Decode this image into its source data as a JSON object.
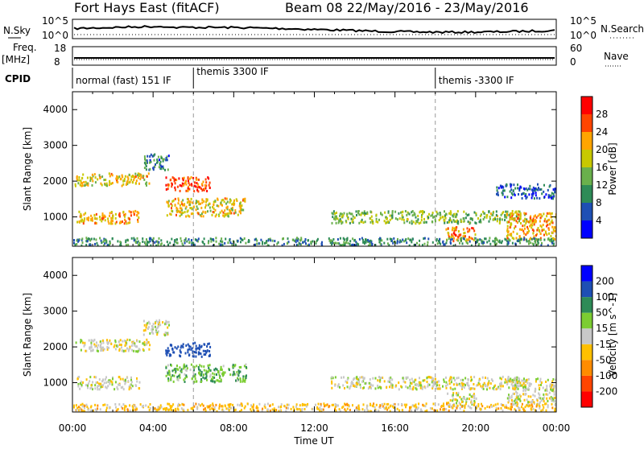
{
  "header": {
    "station": "Fort Hays East (fitACF)",
    "beam_date": "Beam 08 22/May/2016 - 23/May/2016"
  },
  "noise_panel": {
    "left_label": "N.Sky",
    "right_label": "N.Search",
    "left_ticks": [
      "10^5",
      "10^0"
    ],
    "right_ticks": [
      "10^5",
      "10^0"
    ]
  },
  "freq_panel": {
    "left_label_line1": "Freq.",
    "left_label_line2": "[MHz]",
    "right_label": "Nave",
    "left_ticks": [
      "18",
      "8"
    ],
    "right_ticks": [
      "60",
      "0"
    ]
  },
  "cpid": {
    "label": "CPID",
    "segments": [
      {
        "label": "normal (fast) 151 IF",
        "start": 0
      },
      {
        "label": "themis 3300 IF",
        "start": 6
      },
      {
        "label": "themis -3300 IF",
        "start": 18
      }
    ]
  },
  "colors": {
    "power_scale": [
      "#0000ff",
      "#1e4fb4",
      "#2e8b57",
      "#6ab04c",
      "#c8c800",
      "#ffa500",
      "#ff4500",
      "#ff0000"
    ],
    "velocity_scale": [
      "#ff0000",
      "#ff4500",
      "#ff8c00",
      "#ffc000",
      "#c8c8c8",
      "#7ccd32",
      "#2e8b57",
      "#1e4fb4",
      "#0000ff"
    ]
  },
  "chart_data": [
    {
      "type": "heatmap",
      "title": "Power",
      "ylabel": "Slant Range [km]",
      "xlabel": "Time UT",
      "xticks": [
        "00:00",
        "04:00",
        "08:00",
        "12:00",
        "16:00",
        "20:00",
        "00:00"
      ],
      "yticks": [
        "1000",
        "2000",
        "3000",
        "4000"
      ],
      "xlim": [
        0,
        24
      ],
      "ylim": [
        180,
        4500
      ],
      "colorbar": {
        "label": "Power [dB]",
        "ticks": [
          "4",
          "8",
          "12",
          "16",
          "20",
          "24",
          "28"
        ],
        "range": [
          0,
          30
        ]
      },
      "features": [
        {
          "t0": 0.1,
          "t1": 3.8,
          "r0": 1850,
          "r1": 2200,
          "power": 18
        },
        {
          "t0": 0.2,
          "t1": 3.3,
          "r0": 800,
          "r1": 1150,
          "power": 20
        },
        {
          "t0": 3.5,
          "t1": 4.8,
          "r0": 2300,
          "r1": 2750,
          "power": 8
        },
        {
          "t0": 4.6,
          "t1": 6.8,
          "r0": 1700,
          "r1": 2100,
          "power": 24
        },
        {
          "t0": 4.6,
          "t1": 8.6,
          "r0": 1000,
          "r1": 1500,
          "power": 18
        },
        {
          "t0": 12.8,
          "t1": 22.5,
          "r0": 800,
          "r1": 1150,
          "power": 14
        },
        {
          "t0": 18.5,
          "t1": 20.0,
          "r0": 300,
          "r1": 700,
          "power": 22
        },
        {
          "t0": 21.5,
          "t1": 24.0,
          "r0": 350,
          "r1": 1100,
          "power": 20
        },
        {
          "t0": 21.0,
          "t1": 24.0,
          "r0": 1500,
          "r1": 1900,
          "power": 6
        },
        {
          "t0": 0.0,
          "t1": 24.0,
          "r0": 180,
          "r1": 400,
          "power": 10
        }
      ]
    },
    {
      "type": "heatmap",
      "title": "Velocity",
      "ylabel": "Slant Range [km]",
      "xlabel": "Time UT",
      "xticks": [
        "00:00",
        "04:00",
        "08:00",
        "12:00",
        "16:00",
        "20:00",
        "00:00"
      ],
      "yticks": [
        "1000",
        "2000",
        "3000",
        "4000"
      ],
      "xlim": [
        0,
        24
      ],
      "ylim": [
        180,
        4500
      ],
      "colorbar": {
        "label": "Velocity [m s^-1]",
        "ticks": [
          "-200",
          "-100",
          "-50",
          "-15",
          "15",
          "50",
          "100",
          "200"
        ],
        "range": [
          -250,
          250
        ]
      },
      "features": [
        {
          "t0": 0.1,
          "t1": 3.8,
          "r0": 1850,
          "r1": 2200,
          "velocity": 0
        },
        {
          "t0": 0.2,
          "t1": 3.3,
          "r0": 800,
          "r1": 1150,
          "velocity": 0
        },
        {
          "t0": 3.5,
          "t1": 4.8,
          "r0": 2300,
          "r1": 2750,
          "velocity": 0
        },
        {
          "t0": 4.6,
          "t1": 6.8,
          "r0": 1700,
          "r1": 2100,
          "velocity": 150
        },
        {
          "t0": 4.6,
          "t1": 8.6,
          "r0": 1000,
          "r1": 1500,
          "velocity": 40
        },
        {
          "t0": 12.8,
          "t1": 22.5,
          "r0": 800,
          "r1": 1150,
          "velocity": 0
        },
        {
          "t0": 18.5,
          "t1": 20.0,
          "r0": 300,
          "r1": 700,
          "velocity": 0
        },
        {
          "t0": 21.5,
          "t1": 24.0,
          "r0": 350,
          "r1": 1100,
          "velocity": 0
        },
        {
          "t0": 0.0,
          "t1": 24.0,
          "r0": 180,
          "r1": 400,
          "velocity": -30
        }
      ]
    }
  ]
}
